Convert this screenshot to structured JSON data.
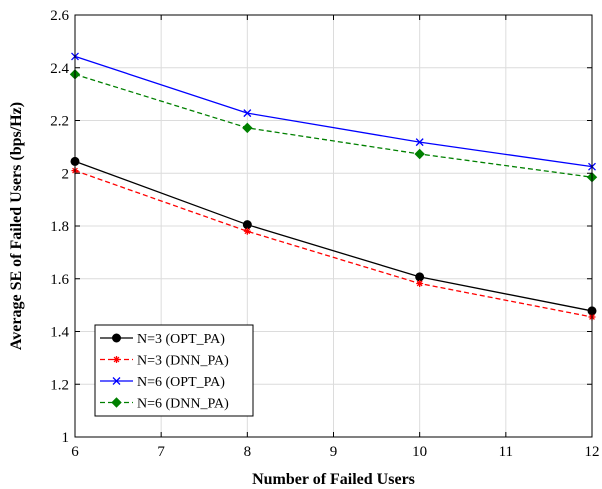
{
  "chart_data": {
    "type": "line",
    "title": "",
    "xlabel": "Number of Failed Users",
    "ylabel": "Average SE of Failed Users (bps/Hz)",
    "xlim": [
      6,
      12
    ],
    "ylim": [
      1,
      2.6
    ],
    "xticks": [
      6,
      7,
      8,
      9,
      10,
      11,
      12
    ],
    "yticks": [
      1,
      1.2,
      1.4,
      1.6,
      1.8,
      2,
      2.2,
      2.4,
      2.6
    ],
    "xtick_labels": [
      "6",
      "7",
      "8",
      "9",
      "10",
      "11",
      "12"
    ],
    "ytick_labels": [
      "1",
      "1.2",
      "1.4",
      "1.6",
      "1.8",
      "2",
      "2.2",
      "2.4",
      "2.6"
    ],
    "grid": true,
    "legend_position": "bottom-left",
    "x": [
      6,
      8,
      10,
      12
    ],
    "series": [
      {
        "name": "N=3 (OPT_PA)",
        "values": [
          2.045,
          1.805,
          1.607,
          1.478
        ],
        "color": "#000000",
        "dash": "solid",
        "marker": "circle"
      },
      {
        "name": "N=3 (DNN_PA)",
        "values": [
          2.01,
          1.78,
          1.582,
          1.455
        ],
        "color": "#ff0000",
        "dash": "dashed",
        "marker": "asterisk"
      },
      {
        "name": "N=6 (OPT_PA)",
        "values": [
          2.443,
          2.228,
          2.118,
          2.025
        ],
        "color": "#0000ff",
        "dash": "solid",
        "marker": "x"
      },
      {
        "name": "N=6 (DNN_PA)",
        "values": [
          2.375,
          2.172,
          2.073,
          1.985
        ],
        "color": "#008000",
        "dash": "dashed",
        "marker": "diamond"
      }
    ]
  }
}
